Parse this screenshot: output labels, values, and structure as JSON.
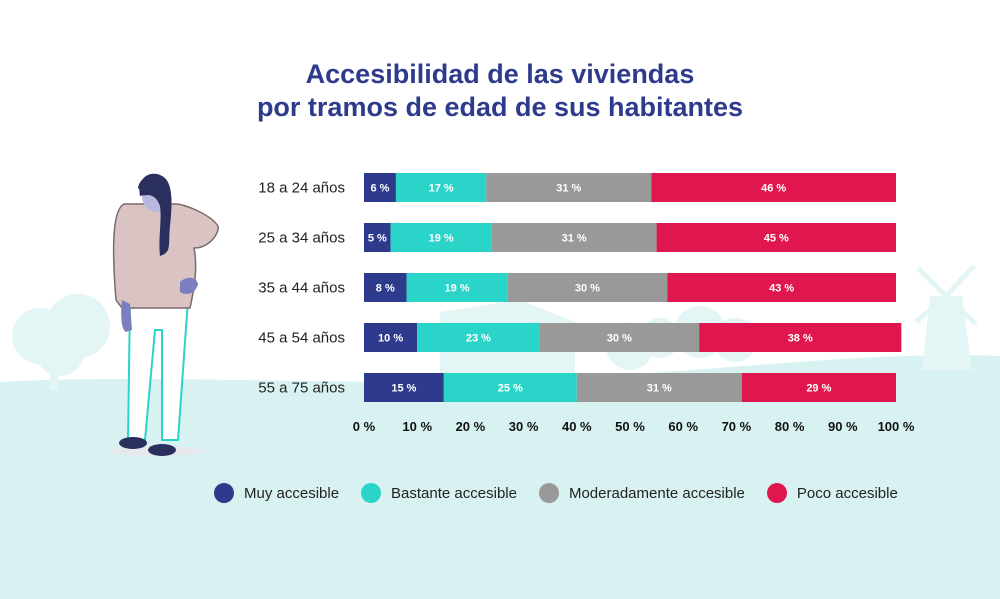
{
  "title": {
    "line1": "Accesibilidad de las viviendas",
    "line2": "por tramos de edad de sus habitantes"
  },
  "colors": {
    "title": "#2e3a8c",
    "muy": "#2e3a8c",
    "bastante": "#2ad4c8",
    "moderadamente": "#999999",
    "poco": "#e0174f",
    "background_land": "#d8f2f2"
  },
  "chart_data": {
    "type": "bar",
    "orientation": "horizontal",
    "stacked": true,
    "title": "Accesibilidad de las viviendas por tramos de edad de sus habitantes",
    "categories": [
      "18 a 24 años",
      "25 a 34 años",
      "35 a 44 años",
      "45 a 54 años",
      "55 a 75 años"
    ],
    "series": [
      {
        "name": "Muy accesible",
        "key": "muy",
        "values": [
          6,
          5,
          8,
          10,
          15
        ],
        "labels": [
          "6 %",
          "5 %",
          "8 %",
          "10 %",
          "15 %"
        ]
      },
      {
        "name": "Bastante accesible",
        "key": "bastante",
        "values": [
          17,
          19,
          19,
          23,
          25
        ],
        "labels": [
          "17 %",
          "19 %",
          "19 %",
          "23 %",
          "25 %"
        ]
      },
      {
        "name": "Moderadamente accesible",
        "key": "moderadamente",
        "values": [
          31,
          31,
          30,
          30,
          31
        ],
        "labels": [
          "31 %",
          "31 %",
          "30 %",
          "30 %",
          "31 %"
        ]
      },
      {
        "name": "Poco accesible",
        "key": "poco",
        "values": [
          46,
          45,
          43,
          38,
          29
        ],
        "labels": [
          "46 %",
          "45 %",
          "43 %",
          "38 %",
          "29 %"
        ]
      }
    ],
    "xlim": [
      0,
      100
    ],
    "xticks": [
      0,
      10,
      20,
      30,
      40,
      50,
      60,
      70,
      80,
      90,
      100
    ],
    "xtick_labels": [
      "0 %",
      "10 %",
      "20 %",
      "30 %",
      "40 %",
      "50 %",
      "60 %",
      "70 %",
      "80 %",
      "90 %",
      "100 %"
    ],
    "xlabel": "",
    "ylabel": "",
    "grid": false,
    "legend_position": "bottom"
  }
}
